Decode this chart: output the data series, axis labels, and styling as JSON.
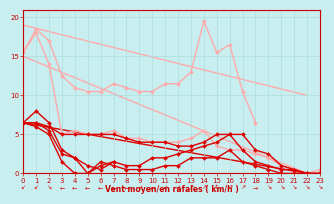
{
  "background_color": "#c8eef0",
  "xlabel": "Vent moyen/en rafales ( km/h )",
  "ylim": [
    0,
    21
  ],
  "xlim": [
    0,
    23
  ],
  "yticks": [
    0,
    5,
    10,
    15,
    20
  ],
  "xticks": [
    0,
    1,
    2,
    3,
    4,
    5,
    6,
    7,
    8,
    9,
    10,
    11,
    12,
    13,
    14,
    15,
    16,
    17,
    18,
    19,
    20,
    21,
    22,
    23
  ],
  "series": [
    {
      "comment": "pink upper straight line: from ~19 at x=0 to ~10 at x=22",
      "x": [
        0,
        22
      ],
      "y": [
        19,
        10
      ],
      "color": "#ffaaaa",
      "linewidth": 1.0,
      "marker": null,
      "zorder": 1
    },
    {
      "comment": "pink lower straight line: from ~15 at x=0 to ~0 at x=22",
      "x": [
        0,
        22
      ],
      "y": [
        15,
        0
      ],
      "color": "#ffaaaa",
      "linewidth": 1.0,
      "marker": null,
      "zorder": 1
    },
    {
      "comment": "pink upper zigzag: peaks around x=1(18.5), x=14(19.5), x=16(16.5)",
      "x": [
        0,
        1,
        2,
        3,
        4,
        5,
        6,
        7,
        8,
        9,
        10,
        11,
        12,
        13,
        14,
        15,
        16,
        17,
        18
      ],
      "y": [
        15.5,
        18.5,
        17.0,
        12.5,
        11.0,
        10.5,
        10.5,
        11.5,
        11.0,
        10.5,
        10.5,
        11.5,
        11.5,
        13.0,
        19.5,
        15.5,
        16.5,
        10.5,
        6.5
      ],
      "color": "#ffaaaa",
      "linewidth": 1.0,
      "marker": "D",
      "markersize": 2,
      "zorder": 2
    },
    {
      "comment": "pink lower zigzag from x=0 to x=23",
      "x": [
        0,
        1,
        2,
        3,
        4,
        5,
        6,
        7,
        8,
        9,
        10,
        11,
        12,
        13,
        14,
        15,
        16,
        17,
        18,
        19,
        20,
        21,
        22,
        23
      ],
      "y": [
        15.5,
        18.0,
        14.0,
        5.0,
        5.5,
        5.0,
        5.0,
        5.5,
        4.5,
        4.5,
        4.0,
        4.0,
        4.0,
        4.5,
        5.5,
        3.5,
        3.0,
        3.0,
        2.5,
        2.0,
        1.0,
        0.5,
        0.0,
        0.5
      ],
      "color": "#ffaaaa",
      "linewidth": 1.0,
      "marker": "D",
      "markersize": 2,
      "zorder": 2
    },
    {
      "comment": "dark red upper straight line: from ~6.5 at x=0 to ~0 at x=22",
      "x": [
        0,
        22
      ],
      "y": [
        6.5,
        0
      ],
      "color": "#dd0000",
      "linewidth": 1.0,
      "marker": null,
      "zorder": 1
    },
    {
      "comment": "dark red short curve x=0..7",
      "x": [
        0,
        1,
        2,
        3,
        4,
        5,
        6,
        7
      ],
      "y": [
        6.5,
        8.0,
        6.5,
        3.0,
        2.0,
        1.0,
        0.5,
        1.5
      ],
      "color": "#dd0000",
      "linewidth": 1.0,
      "marker": "D",
      "markersize": 2,
      "zorder": 3
    },
    {
      "comment": "dark red full curve high",
      "x": [
        0,
        1,
        2,
        3,
        4,
        5,
        6,
        7,
        8,
        9,
        10,
        11,
        12,
        13,
        14,
        15,
        16,
        17,
        18,
        19,
        20,
        21,
        22,
        23
      ],
      "y": [
        6.5,
        6.5,
        6.0,
        5.0,
        5.0,
        5.0,
        5.0,
        5.0,
        4.5,
        4.0,
        4.0,
        4.0,
        3.5,
        3.5,
        4.0,
        5.0,
        5.0,
        5.0,
        3.0,
        2.5,
        1.0,
        0.5,
        0.0,
        0.0
      ],
      "color": "#dd0000",
      "linewidth": 1.0,
      "marker": "D",
      "markersize": 2,
      "zorder": 3
    },
    {
      "comment": "dark red full curve mid",
      "x": [
        0,
        1,
        2,
        3,
        4,
        5,
        6,
        7,
        8,
        9,
        10,
        11,
        12,
        13,
        14,
        15,
        16,
        17,
        18,
        19,
        20,
        21,
        22,
        23
      ],
      "y": [
        6.5,
        6.5,
        5.5,
        2.5,
        2.0,
        0.0,
        1.0,
        1.5,
        1.0,
        1.0,
        2.0,
        2.0,
        2.5,
        3.0,
        3.5,
        4.0,
        5.0,
        3.0,
        1.5,
        1.0,
        0.5,
        0.5,
        0.0,
        0.0
      ],
      "color": "#dd0000",
      "linewidth": 1.0,
      "marker": "D",
      "markersize": 2,
      "zorder": 3
    },
    {
      "comment": "dark red full curve low",
      "x": [
        0,
        1,
        2,
        3,
        4,
        5,
        6,
        7,
        8,
        9,
        10,
        11,
        12,
        13,
        14,
        15,
        16,
        17,
        18,
        19,
        20,
        21,
        22,
        23
      ],
      "y": [
        6.5,
        6.0,
        5.0,
        1.5,
        0.0,
        0.0,
        1.5,
        1.0,
        0.5,
        0.5,
        0.5,
        1.0,
        1.0,
        2.0,
        2.0,
        2.0,
        3.0,
        1.5,
        1.0,
        0.5,
        0.0,
        0.0,
        0.0,
        0.0
      ],
      "color": "#dd0000",
      "linewidth": 1.0,
      "marker": "D",
      "markersize": 2,
      "zorder": 3
    }
  ],
  "arrows": {
    "symbols": [
      "↙",
      "↙",
      "↘",
      "←",
      "←",
      "←",
      "←",
      "←",
      "←",
      "↙",
      "←",
      "↙",
      "↙",
      "↗",
      "↗",
      "↑",
      "↗",
      "↗",
      "→",
      "↘",
      "↘",
      "↘",
      "↘",
      "↘"
    ],
    "color": "#dd0000",
    "fontsize": 4.5
  },
  "spine_color": "#cc0000",
  "grid_color": "#aadddd",
  "tick_color": "#cc0000",
  "xlabel_color": "#cc0000",
  "xlabel_fontsize": 5.5,
  "tick_fontsize": 5
}
